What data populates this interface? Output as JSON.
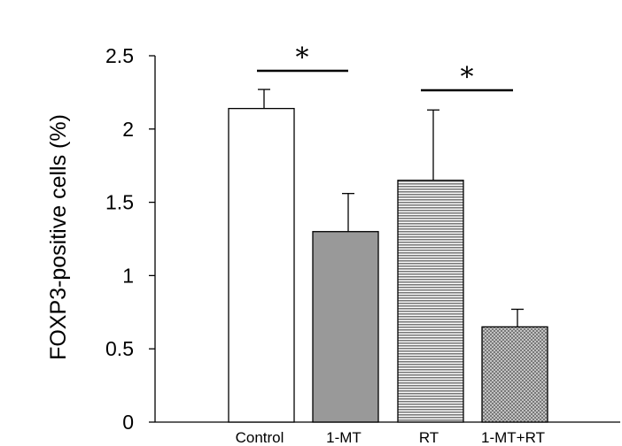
{
  "chart_data": {
    "type": "bar",
    "title": "",
    "xlabel": "",
    "ylabel": "FOXP3-positive cells (%)",
    "ylim": [
      0,
      2.5
    ],
    "yticks": [
      "0",
      "0.5",
      "1",
      "1.5",
      "2",
      "2.5"
    ],
    "ytick_values": [
      0,
      0.5,
      1,
      1.5,
      2,
      2.5
    ],
    "categories": [
      "Control",
      "1-MT",
      "RT",
      "1-MT+RT"
    ],
    "values": [
      2.14,
      1.3,
      1.65,
      0.65
    ],
    "errors": [
      0.13,
      0.26,
      0.48,
      0.12
    ],
    "bar_fills": [
      "white",
      "gray",
      "horizontal-lines",
      "crosshatch"
    ],
    "grid": false,
    "significance": [
      {
        "from": "Control",
        "to": "1-MT",
        "label": "*"
      },
      {
        "from": "RT",
        "to": "1-MT+RT",
        "label": "*"
      }
    ]
  }
}
